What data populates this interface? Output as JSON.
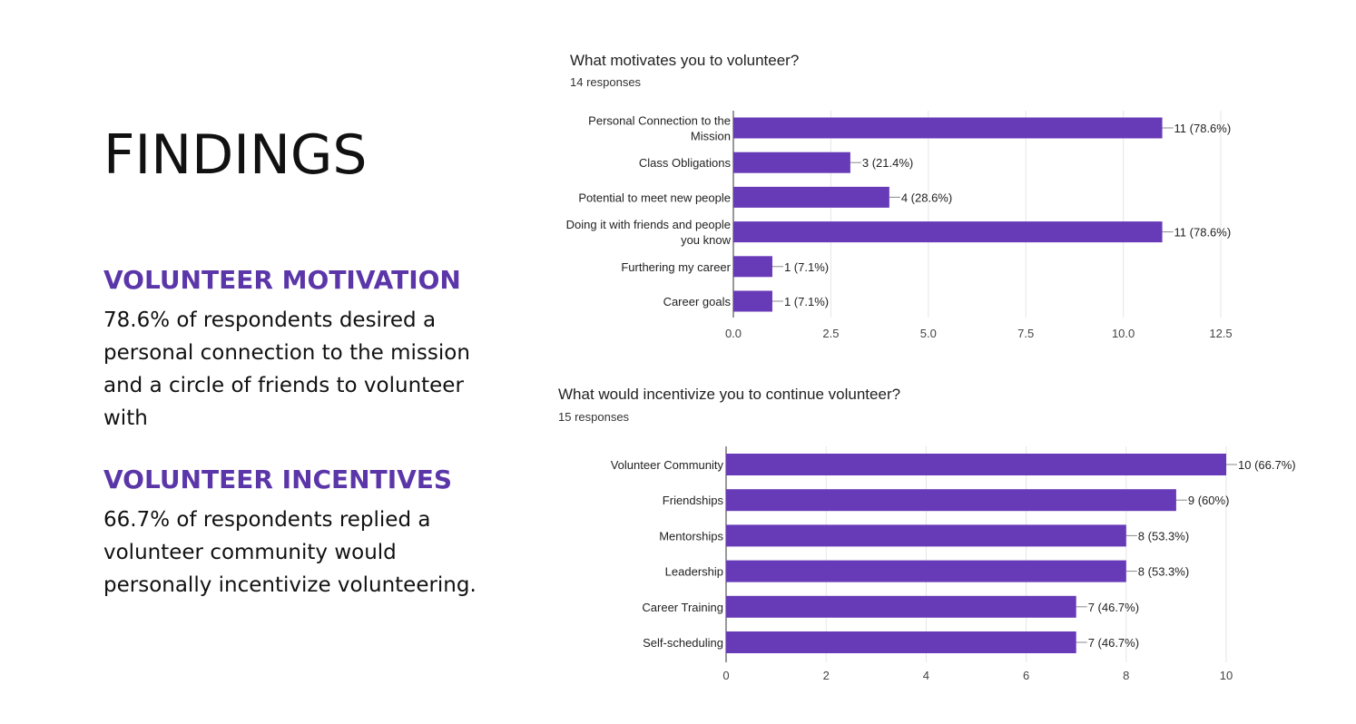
{
  "page": {
    "title": "FINDINGS"
  },
  "sections": [
    {
      "heading": "VOLUNTEER MOTIVATION",
      "body": "78.6% of respondents desired a personal connection to the mission and a circle of friends to volunteer with"
    },
    {
      "heading": "VOLUNTEER INCENTIVES",
      "body": "66.7% of respondents replied a volunteer community would personally incentivize volunteering."
    }
  ],
  "colors": {
    "accent": "#5b36a9",
    "bar": "#673ab7",
    "text": "#111111",
    "grid": "#e6e6e6"
  },
  "chart_data": [
    {
      "type": "bar",
      "orientation": "horizontal",
      "title": "What motivates you to volunteer?",
      "subtitle": "14 responses",
      "categories": [
        [
          "Personal Connection to the",
          "Mission"
        ],
        [
          "Class Obligations"
        ],
        [
          "Potential to meet new people"
        ],
        [
          "Doing it with friends and people",
          "you know"
        ],
        [
          "Furthering my career"
        ],
        [
          "Career goals"
        ]
      ],
      "values": [
        11,
        3,
        4,
        11,
        1,
        1
      ],
      "data_labels": [
        "11 (78.6%)",
        "3 (21.4%)",
        "4 (28.6%)",
        "11 (78.6%)",
        "1 (7.1%)",
        "1 (7.1%)"
      ],
      "xlim": [
        0,
        12.5
      ],
      "xticks": [
        "0.0",
        "2.5",
        "5.0",
        "7.5",
        "10.0",
        "12.5"
      ],
      "grid": true
    },
    {
      "type": "bar",
      "orientation": "horizontal",
      "title": "What would incentivize you to continue volunteer?",
      "subtitle": "15 responses",
      "categories": [
        [
          "Volunteer Community"
        ],
        [
          "Friendships"
        ],
        [
          "Mentorships"
        ],
        [
          "Leadership"
        ],
        [
          "Career Training"
        ],
        [
          "Self-scheduling"
        ]
      ],
      "values": [
        10,
        9,
        8,
        8,
        7,
        7
      ],
      "data_labels": [
        "10 (66.7%)",
        "9 (60%)",
        "8 (53.3%)",
        "8 (53.3%)",
        "7 (46.7%)",
        "7 (46.7%)"
      ],
      "xlim": [
        0,
        10
      ],
      "xticks": [
        "0",
        "2",
        "4",
        "6",
        "8",
        "10"
      ],
      "grid": true
    }
  ]
}
